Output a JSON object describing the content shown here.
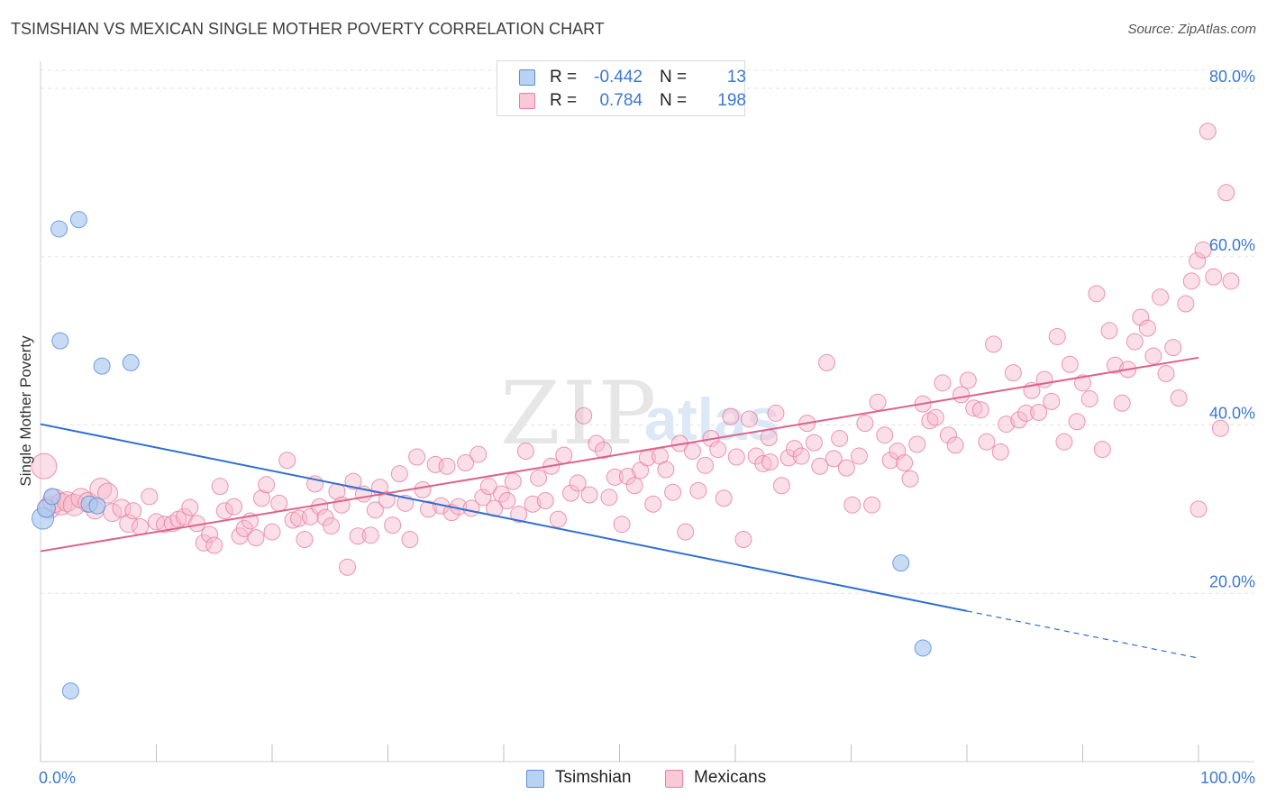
{
  "header": {
    "title": "TSIMSHIAN VS MEXICAN SINGLE MOTHER POVERTY CORRELATION CHART",
    "source": "Source: ZipAtlas.com"
  },
  "legend": {
    "rows": [
      {
        "r_label": "R =",
        "r_value": "-0.442",
        "n_label": "N =",
        "n_value": "13"
      },
      {
        "r_label": "R =",
        "r_value": "0.784",
        "n_label": "N =",
        "n_value": "198"
      }
    ]
  },
  "bottom_legend": {
    "items": [
      "Tsimshian",
      "Mexicans"
    ]
  },
  "colors": {
    "tsimshian_fill": "#a9c8f0",
    "tsimshian_stroke": "#5b8fd6",
    "tsimshian_line": "#2f6fd1",
    "mexicans_fill": "#f6b8cb",
    "mexicans_stroke": "#e782a2",
    "mexicans_line": "#e0608a",
    "axis_text": "#3b78d4",
    "grid": "#e3e3e3"
  },
  "chart_data": {
    "type": "scatter",
    "title": "TSIMSHIAN VS MEXICAN SINGLE MOTHER POVERTY CORRELATION CHART",
    "xlabel": "",
    "ylabel": "Single Mother Poverty",
    "xlim": [
      0,
      100
    ],
    "ylim": [
      0,
      83
    ],
    "x_tick_labels": [
      "0.0%",
      "100.0%"
    ],
    "y_ticks": [
      20,
      40,
      60,
      80
    ],
    "y_tick_labels": [
      "20.0%",
      "40.0%",
      "60.0%",
      "80.0%"
    ],
    "grid": true,
    "legend_position": "top-center",
    "watermark": "ZIPatlas",
    "series": [
      {
        "name": "Tsimshian",
        "r": -0.442,
        "n": 13,
        "points": [
          [
            0.2,
            28.9,
            12
          ],
          [
            0.5,
            30.1,
            10
          ],
          [
            1.0,
            31.5,
            9
          ],
          [
            1.6,
            63.3,
            9
          ],
          [
            1.7,
            50.0,
            9
          ],
          [
            3.3,
            64.4,
            9
          ],
          [
            2.6,
            8.4,
            9
          ],
          [
            4.2,
            30.6,
            9
          ],
          [
            4.9,
            30.4,
            9
          ],
          [
            5.3,
            47.0,
            9
          ],
          [
            7.8,
            47.4,
            9
          ],
          [
            74.3,
            23.6,
            9
          ],
          [
            76.2,
            13.5,
            9
          ]
        ],
        "trend": {
          "x0": 0,
          "y0": 40.1,
          "x1": 80,
          "y1": 17.9,
          "dash_to_x": 100,
          "dash_to_y": 12.3
        }
      },
      {
        "name": "Mexicans",
        "r": 0.784,
        "n": 198,
        "points": [
          [
            0.3,
            35.1,
            14
          ],
          [
            0.8,
            30.2,
            12
          ],
          [
            1.2,
            31.0,
            13
          ],
          [
            1.8,
            30.6,
            12
          ],
          [
            2.3,
            30.9,
            11
          ],
          [
            2.9,
            30.5,
            12
          ],
          [
            3.5,
            31.3,
            11
          ],
          [
            4.1,
            30.8,
            11
          ],
          [
            4.7,
            29.9,
            10
          ],
          [
            5.2,
            32.4,
            12
          ],
          [
            5.8,
            31.9,
            11
          ],
          [
            6.2,
            29.6,
            10
          ],
          [
            7.0,
            30.1,
            10
          ],
          [
            7.6,
            28.3,
            10
          ],
          [
            8.0,
            29.8,
            9
          ],
          [
            8.6,
            27.9,
            9
          ],
          [
            9.4,
            31.5,
            9
          ],
          [
            10.0,
            28.5,
            9
          ],
          [
            10.7,
            28.2,
            9
          ],
          [
            11.4,
            28.3,
            9
          ],
          [
            11.9,
            28.8,
            9
          ],
          [
            12.4,
            29.1,
            9
          ],
          [
            12.9,
            30.2,
            9
          ],
          [
            13.5,
            28.3,
            9
          ],
          [
            14.1,
            26.0,
            9
          ],
          [
            14.6,
            27.0,
            9
          ],
          [
            15.0,
            25.7,
            9
          ],
          [
            15.5,
            32.7,
            9
          ],
          [
            15.9,
            29.8,
            9
          ],
          [
            16.7,
            30.3,
            9
          ],
          [
            17.2,
            26.8,
            9
          ],
          [
            17.6,
            27.7,
            9
          ],
          [
            18.1,
            28.6,
            9
          ],
          [
            18.6,
            26.6,
            9
          ],
          [
            19.1,
            31.3,
            9
          ],
          [
            19.5,
            32.9,
            9
          ],
          [
            20.0,
            27.3,
            9
          ],
          [
            20.6,
            30.7,
            9
          ],
          [
            21.3,
            35.8,
            9
          ],
          [
            21.8,
            28.7,
            9
          ],
          [
            22.3,
            28.9,
            9
          ],
          [
            22.8,
            26.4,
            9
          ],
          [
            23.3,
            29.1,
            9
          ],
          [
            23.7,
            33.0,
            9
          ],
          [
            24.1,
            30.3,
            9
          ],
          [
            24.6,
            29.0,
            9
          ],
          [
            25.1,
            28.0,
            9
          ],
          [
            25.6,
            32.1,
            9
          ],
          [
            26.0,
            30.5,
            9
          ],
          [
            26.5,
            23.1,
            9
          ],
          [
            27.0,
            33.3,
            9
          ],
          [
            27.4,
            26.8,
            9
          ],
          [
            27.9,
            31.8,
            9
          ],
          [
            28.5,
            26.9,
            9
          ],
          [
            28.9,
            29.9,
            9
          ],
          [
            29.3,
            32.6,
            9
          ],
          [
            29.9,
            31.1,
            9
          ],
          [
            30.4,
            28.1,
            9
          ],
          [
            31.0,
            34.2,
            9
          ],
          [
            31.5,
            30.7,
            9
          ],
          [
            31.9,
            26.4,
            9
          ],
          [
            32.5,
            36.2,
            9
          ],
          [
            33.0,
            32.3,
            9
          ],
          [
            33.5,
            30.0,
            9
          ],
          [
            34.1,
            35.3,
            9
          ],
          [
            34.6,
            30.4,
            9
          ],
          [
            35.1,
            35.1,
            9
          ],
          [
            35.5,
            29.6,
            9
          ],
          [
            36.1,
            30.3,
            9
          ],
          [
            36.7,
            35.5,
            9
          ],
          [
            37.2,
            30.1,
            9
          ],
          [
            37.8,
            36.5,
            9
          ],
          [
            38.2,
            31.4,
            9
          ],
          [
            38.7,
            32.7,
            9
          ],
          [
            39.2,
            30.1,
            9
          ],
          [
            39.8,
            31.8,
            9
          ],
          [
            40.3,
            31.0,
            9
          ],
          [
            40.8,
            33.3,
            9
          ],
          [
            41.3,
            29.4,
            9
          ],
          [
            41.9,
            36.9,
            9
          ],
          [
            42.5,
            30.6,
            9
          ],
          [
            43.0,
            33.7,
            9
          ],
          [
            43.6,
            31.0,
            9
          ],
          [
            44.1,
            35.1,
            9
          ],
          [
            44.7,
            28.8,
            9
          ],
          [
            45.2,
            36.4,
            9
          ],
          [
            45.8,
            31.9,
            9
          ],
          [
            46.4,
            33.1,
            9
          ],
          [
            46.9,
            41.1,
            9
          ],
          [
            47.4,
            31.7,
            9
          ],
          [
            48.0,
            37.8,
            9
          ],
          [
            48.6,
            37.0,
            9
          ],
          [
            49.1,
            31.4,
            9
          ],
          [
            49.6,
            33.8,
            9
          ],
          [
            50.2,
            28.2,
            9
          ],
          [
            50.7,
            33.9,
            9
          ],
          [
            51.3,
            32.8,
            9
          ],
          [
            51.8,
            34.6,
            9
          ],
          [
            52.4,
            36.1,
            9
          ],
          [
            52.9,
            30.6,
            9
          ],
          [
            53.5,
            36.3,
            9
          ],
          [
            54.0,
            34.7,
            9
          ],
          [
            54.6,
            32.0,
            9
          ],
          [
            55.2,
            37.8,
            9
          ],
          [
            55.7,
            27.3,
            9
          ],
          [
            56.3,
            36.9,
            9
          ],
          [
            56.8,
            32.2,
            9
          ],
          [
            57.4,
            35.2,
            9
          ],
          [
            57.9,
            38.4,
            9
          ],
          [
            58.5,
            37.1,
            9
          ],
          [
            59.0,
            31.3,
            9
          ],
          [
            59.6,
            41.0,
            9
          ],
          [
            60.1,
            36.2,
            9
          ],
          [
            60.7,
            26.4,
            9
          ],
          [
            61.2,
            40.7,
            9
          ],
          [
            61.8,
            36.3,
            9
          ],
          [
            62.4,
            35.4,
            9
          ],
          [
            62.9,
            38.5,
            9
          ],
          [
            63.5,
            41.4,
            9
          ],
          [
            64.0,
            32.8,
            9
          ],
          [
            64.6,
            36.1,
            9
          ],
          [
            65.1,
            37.2,
            9
          ],
          [
            65.7,
            36.3,
            9
          ],
          [
            66.2,
            40.2,
            9
          ],
          [
            66.8,
            37.9,
            9
          ],
          [
            67.3,
            35.1,
            9
          ],
          [
            67.9,
            47.4,
            9
          ],
          [
            68.5,
            36.0,
            9
          ],
          [
            69.0,
            38.4,
            9
          ],
          [
            69.6,
            34.9,
            9
          ],
          [
            70.1,
            30.5,
            9
          ],
          [
            70.7,
            36.3,
            9
          ],
          [
            71.2,
            40.2,
            9
          ],
          [
            71.8,
            30.5,
            9
          ],
          [
            72.3,
            42.7,
            9
          ],
          [
            72.9,
            38.8,
            9
          ],
          [
            73.4,
            35.8,
            9
          ],
          [
            74.0,
            36.9,
            9
          ],
          [
            74.6,
            35.5,
            9
          ],
          [
            75.1,
            33.6,
            9
          ],
          [
            75.7,
            37.7,
            9
          ],
          [
            76.2,
            42.5,
            9
          ],
          [
            76.8,
            40.5,
            9
          ],
          [
            77.3,
            40.9,
            9
          ],
          [
            77.9,
            45.0,
            9
          ],
          [
            78.4,
            38.8,
            9
          ],
          [
            79.0,
            37.6,
            9
          ],
          [
            79.5,
            43.6,
            9
          ],
          [
            80.1,
            45.3,
            9
          ],
          [
            80.6,
            42.0,
            9
          ],
          [
            81.2,
            41.8,
            9
          ],
          [
            81.7,
            38.0,
            9
          ],
          [
            82.3,
            49.6,
            9
          ],
          [
            82.9,
            36.8,
            9
          ],
          [
            83.4,
            40.1,
            9
          ],
          [
            84.0,
            46.2,
            9
          ],
          [
            84.5,
            40.6,
            9
          ],
          [
            85.1,
            41.4,
            9
          ],
          [
            85.6,
            44.1,
            9
          ],
          [
            86.2,
            41.5,
            9
          ],
          [
            86.7,
            45.4,
            9
          ],
          [
            87.3,
            42.8,
            9
          ],
          [
            87.8,
            50.5,
            9
          ],
          [
            88.4,
            38.0,
            9
          ],
          [
            88.9,
            47.2,
            9
          ],
          [
            89.5,
            40.4,
            9
          ],
          [
            90.0,
            45.0,
            9
          ],
          [
            90.6,
            43.1,
            9
          ],
          [
            91.2,
            55.6,
            9
          ],
          [
            91.7,
            37.1,
            9
          ],
          [
            92.3,
            51.2,
            9
          ],
          [
            92.8,
            47.1,
            9
          ],
          [
            93.4,
            42.6,
            9
          ],
          [
            93.9,
            46.6,
            9
          ],
          [
            94.5,
            49.9,
            9
          ],
          [
            95.0,
            52.8,
            9
          ],
          [
            95.6,
            51.5,
            9
          ],
          [
            96.1,
            48.2,
            9
          ],
          [
            96.7,
            55.2,
            9
          ],
          [
            97.2,
            46.1,
            9
          ],
          [
            97.8,
            49.2,
            9
          ],
          [
            98.3,
            43.2,
            9
          ],
          [
            98.9,
            54.4,
            9
          ],
          [
            99.4,
            57.1,
            9
          ],
          [
            99.9,
            59.5,
            9
          ],
          [
            100.4,
            60.8,
            9
          ],
          [
            100.8,
            74.9,
            9
          ],
          [
            101.3,
            57.6,
            9
          ],
          [
            101.9,
            39.6,
            9
          ],
          [
            102.4,
            67.6,
            9
          ],
          [
            102.8,
            57.1,
            9
          ],
          [
            100.0,
            30.0,
            9
          ],
          [
            63.0,
            35.6,
            9
          ]
        ],
        "trend": {
          "x0": 0,
          "y0": 25.0,
          "x1": 100,
          "y1": 48.0
        }
      }
    ]
  }
}
